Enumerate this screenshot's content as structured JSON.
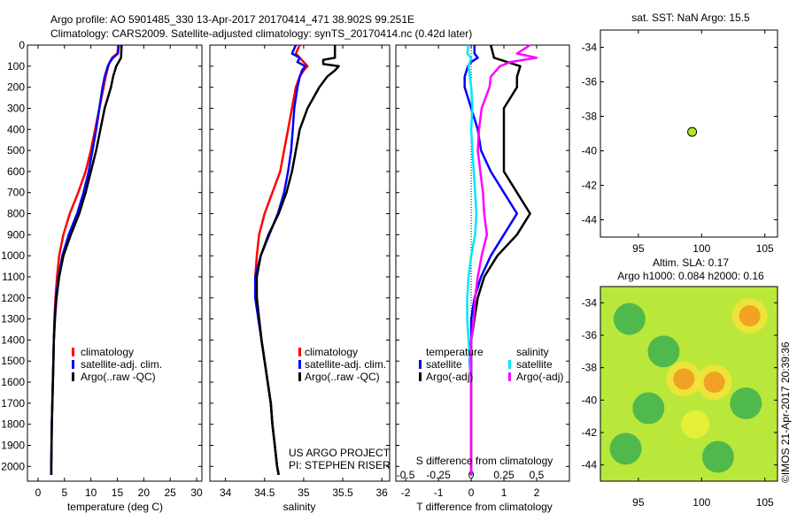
{
  "header": {
    "line1": "Argo profile: AO 5901485_330 13-Apr-2017 20170414_471 38.902S 99.251E",
    "line2": "Climatology: CARS2009. Satellite-adjusted climatology: synTS_20170414.nc (0.42d later)"
  },
  "colors": {
    "climatology": "#ff0000",
    "satellite": "#0000ff",
    "argo": "#000000",
    "sal_satellite": "#00e5ff",
    "sal_argo": "#ff00ff",
    "marker": "#b5e61d"
  },
  "credit": "©IMOS 21-Apr-2017 20:39:36",
  "chart_data": [
    {
      "id": "temperature",
      "type": "line",
      "xlabel": "temperature (deg C)",
      "ylabel": "",
      "xlim": [
        -2,
        31
      ],
      "ylim": [
        2070,
        0
      ],
      "xticks": [
        0,
        5,
        10,
        15,
        20,
        25,
        30
      ],
      "yticks": [
        0,
        100,
        200,
        300,
        400,
        500,
        600,
        700,
        800,
        900,
        1000,
        1100,
        1200,
        1300,
        1400,
        1500,
        1600,
        1700,
        1800,
        1900,
        2000
      ],
      "legend": [
        "climatology",
        "satellite-adj. clim.",
        "Argo(..raw -QC)"
      ],
      "series": [
        {
          "name": "climatology",
          "color": "#ff0000",
          "depth": [
            0,
            40,
            60,
            80,
            100,
            150,
            200,
            300,
            400,
            500,
            600,
            700,
            800,
            900,
            1000,
            1100,
            1200,
            1300,
            1400,
            1500,
            1600,
            1700,
            1800,
            1900,
            2000,
            2040
          ],
          "values": [
            15.2,
            15.0,
            14.0,
            13.6,
            13.3,
            12.8,
            12.4,
            11.6,
            10.8,
            10.0,
            9.0,
            7.6,
            6.0,
            4.8,
            4.0,
            3.6,
            3.3,
            3.1,
            3.0,
            2.9,
            2.8,
            2.7,
            2.6,
            2.55,
            2.5,
            2.5
          ]
        },
        {
          "name": "satellite-adj. clim.",
          "color": "#0000ff",
          "depth": [
            0,
            40,
            60,
            80,
            100,
            150,
            200,
            300,
            400,
            500,
            600,
            700,
            800,
            900,
            1000,
            1100,
            1200,
            1300,
            1400,
            1500,
            1600,
            1700,
            1800,
            1900,
            2000,
            2040
          ],
          "values": [
            15.3,
            15.1,
            14.2,
            13.6,
            13.2,
            12.6,
            12.2,
            11.6,
            11.0,
            10.3,
            9.6,
            8.6,
            7.4,
            5.8,
            4.6,
            3.9,
            3.4,
            3.2,
            3.0,
            2.9,
            2.8,
            2.7,
            2.6,
            2.55,
            2.5,
            2.5
          ]
        },
        {
          "name": "Argo(..raw -QC)",
          "color": "#000000",
          "depth": [
            0,
            60,
            100,
            150,
            200,
            300,
            400,
            500,
            600,
            700,
            800,
            900,
            1000,
            1100,
            1200,
            1300,
            1400,
            1500,
            1600,
            1700,
            1800,
            1900,
            2000,
            2040
          ],
          "values": [
            15.8,
            15.7,
            14.8,
            14.2,
            13.8,
            12.6,
            11.8,
            11.0,
            10.0,
            9.0,
            7.8,
            6.2,
            4.8,
            4.0,
            3.5,
            3.2,
            3.0,
            2.9,
            2.8,
            2.7,
            2.6,
            2.55,
            2.5,
            2.5
          ]
        }
      ]
    },
    {
      "id": "salinity",
      "type": "line",
      "xlabel": "salinity",
      "xlim": [
        33.8,
        36.1
      ],
      "ylim": [
        2070,
        0
      ],
      "xticks": [
        34,
        34.5,
        35,
        35.5,
        36
      ],
      "legend": [
        "climatology",
        "satellite-adj. clim.",
        "Argo(..raw -QC)"
      ],
      "series": [
        {
          "name": "climatology",
          "color": "#ff0000",
          "depth": [
            0,
            40,
            60,
            80,
            100,
            120,
            150,
            200,
            300,
            400,
            500,
            600,
            700,
            800,
            900,
            1000,
            1100,
            1200,
            1300,
            1400,
            1500,
            1600,
            1700,
            1800,
            1900,
            2000,
            2040
          ],
          "values": [
            34.95,
            34.9,
            34.95,
            35.0,
            35.05,
            35.0,
            34.95,
            34.9,
            34.85,
            34.8,
            34.75,
            34.7,
            34.6,
            34.5,
            34.43,
            34.4,
            34.38,
            34.4,
            34.43,
            34.46,
            34.5,
            34.54,
            34.58,
            34.6,
            34.63,
            34.66,
            34.68
          ]
        },
        {
          "name": "satellite-adj. clim.",
          "color": "#0000ff",
          "depth": [
            0,
            40,
            60,
            80,
            100,
            120,
            150,
            200,
            300,
            400,
            500,
            600,
            700,
            800,
            900,
            1000,
            1100,
            1200,
            1300,
            1400,
            1500,
            1600,
            1700,
            1800,
            1900,
            2000,
            2040
          ],
          "values": [
            34.9,
            34.85,
            34.95,
            34.92,
            35.02,
            34.98,
            34.95,
            34.92,
            34.88,
            34.86,
            34.84,
            34.8,
            34.75,
            34.67,
            34.56,
            34.45,
            34.38,
            34.38,
            34.42,
            34.46,
            34.5,
            34.54,
            34.58,
            34.6,
            34.63,
            34.66,
            34.68
          ]
        },
        {
          "name": "Argo(..raw -QC)",
          "color": "#000000",
          "depth": [
            0,
            60,
            70,
            90,
            100,
            120,
            150,
            200,
            300,
            400,
            500,
            600,
            700,
            800,
            900,
            1000,
            1100,
            1200,
            1300,
            1400,
            1500,
            1600,
            1700,
            1800,
            1900,
            2000,
            2040
          ],
          "values": [
            35.4,
            35.4,
            35.25,
            35.25,
            35.45,
            35.4,
            35.3,
            35.2,
            35.05,
            34.95,
            34.9,
            34.85,
            34.78,
            34.68,
            34.55,
            34.45,
            34.4,
            34.4,
            34.43,
            34.46,
            34.5,
            34.54,
            34.58,
            34.6,
            34.63,
            34.66,
            34.68
          ]
        }
      ]
    },
    {
      "id": "difference",
      "type": "line",
      "xlabel": "T difference from climatology",
      "top_label": "S difference from climatology",
      "xlim": [
        -2.3,
        3.0
      ],
      "ylim": [
        2070,
        0
      ],
      "xticks": [
        -2,
        -1,
        0,
        1,
        2
      ],
      "top_ticks": [
        "-0.5",
        "-0.25",
        "0",
        "0.25",
        "0.5"
      ],
      "legend_titles": [
        "temperature",
        "salinity"
      ],
      "legend": [
        "satellite",
        "Argo(-adj)",
        "satellite",
        "Argo(-adj)"
      ],
      "series": [
        {
          "name": "satellite",
          "group": "temperature",
          "color": "#0000ff",
          "depth": [
            0,
            40,
            60,
            80,
            100,
            150,
            200,
            300,
            400,
            500,
            600,
            700,
            800,
            900,
            1000,
            1100,
            1200,
            1300,
            1400,
            1500,
            1600,
            1700,
            1800,
            1900,
            2000,
            2040
          ],
          "values": [
            0.1,
            0.1,
            0.2,
            0.0,
            -0.1,
            -0.2,
            -0.2,
            0.0,
            0.2,
            0.3,
            0.6,
            1.0,
            1.4,
            1.0,
            0.6,
            0.3,
            0.1,
            0.0,
            0.0,
            -0.05,
            0.0,
            0.0,
            0.0,
            0.0,
            0.0,
            0.0
          ]
        },
        {
          "name": "Argo(-adj)",
          "group": "temperature",
          "color": "#000000",
          "depth": [
            0,
            60,
            100,
            150,
            200,
            300,
            400,
            500,
            600,
            700,
            800,
            900,
            1000,
            1100,
            1200,
            1300,
            1400,
            1500,
            1600,
            1700,
            1800,
            1900,
            2000,
            2040
          ],
          "values": [
            0.6,
            0.7,
            1.5,
            1.4,
            1.4,
            1.0,
            1.0,
            1.0,
            1.0,
            1.4,
            1.8,
            1.4,
            0.8,
            0.4,
            0.2,
            0.1,
            0.0,
            0.0,
            0.0,
            0.0,
            0.0,
            0.0,
            0.0,
            0.0
          ]
        },
        {
          "name": "satellite",
          "group": "salinity",
          "color": "#00e5ff",
          "depth": [
            0,
            40,
            60,
            80,
            100,
            150,
            200,
            300,
            400,
            500,
            600,
            700,
            800,
            900,
            1000,
            1100,
            1200,
            1300,
            1400,
            1500,
            1600,
            1700,
            1800,
            1900,
            2000,
            2040
          ],
          "values": [
            -0.02,
            -0.03,
            0.0,
            -0.01,
            -0.02,
            -0.01,
            0.0,
            0.01,
            0.0,
            0.01,
            0.02,
            0.03,
            0.04,
            0.03,
            0.0,
            -0.02,
            -0.03,
            -0.03,
            -0.02,
            -0.01,
            0.0,
            0.0,
            0.0,
            0.0,
            0.0,
            0.0
          ]
        },
        {
          "name": "Argo(-adj)",
          "group": "salinity",
          "color": "#ff00ff",
          "depth": [
            0,
            40,
            60,
            80,
            100,
            150,
            200,
            300,
            400,
            500,
            600,
            700,
            800,
            900,
            1000,
            1100,
            1200,
            1300,
            1400,
            1500,
            1600,
            1700,
            1800,
            1900,
            2000,
            2040
          ],
          "values": [
            0.45,
            0.35,
            0.5,
            0.3,
            0.22,
            0.15,
            0.14,
            0.08,
            0.06,
            0.05,
            0.07,
            0.09,
            0.1,
            0.12,
            0.08,
            0.05,
            0.03,
            0.02,
            0.0,
            0.0,
            0.0,
            0.0,
            0.0,
            0.0,
            0.0,
            0.0
          ]
        }
      ]
    },
    {
      "id": "location_map",
      "type": "scatter",
      "title": "sat. SST: NaN Argo: 15.5",
      "xlim": [
        92,
        106
      ],
      "ylim": [
        -45,
        -33
      ],
      "xticks": [
        95,
        100,
        105
      ],
      "yticks": [
        -34,
        -36,
        -38,
        -40,
        -42,
        -44
      ],
      "points": [
        {
          "x": 99.251,
          "y": -38.902
        }
      ]
    },
    {
      "id": "sla_map",
      "type": "heatmap",
      "title_line1": "Altim. SLA: 0.17",
      "title_line2": "Argo h1000: 0.084 h2000: 0.16",
      "xlim": [
        92,
        106
      ],
      "ylim": [
        -45,
        -33
      ],
      "xticks": [
        95,
        100,
        105
      ],
      "yticks": [
        -34,
        -36,
        -38,
        -40,
        -42,
        -44
      ],
      "hotspots": [
        {
          "x": 103.8,
          "y": -34.8,
          "level": "high"
        },
        {
          "x": 98.6,
          "y": -38.7,
          "level": "high"
        },
        {
          "x": 101.0,
          "y": -38.9,
          "level": "high"
        },
        {
          "x": 94.3,
          "y": -35.0,
          "level": "low"
        },
        {
          "x": 97.0,
          "y": -37.0,
          "level": "low"
        },
        {
          "x": 95.8,
          "y": -40.5,
          "level": "low"
        },
        {
          "x": 103.5,
          "y": -40.2,
          "level": "low"
        },
        {
          "x": 101.3,
          "y": -43.5,
          "level": "low"
        },
        {
          "x": 94.0,
          "y": -43.0,
          "level": "low"
        },
        {
          "x": 99.5,
          "y": -41.5,
          "level": "mid"
        }
      ]
    }
  ]
}
